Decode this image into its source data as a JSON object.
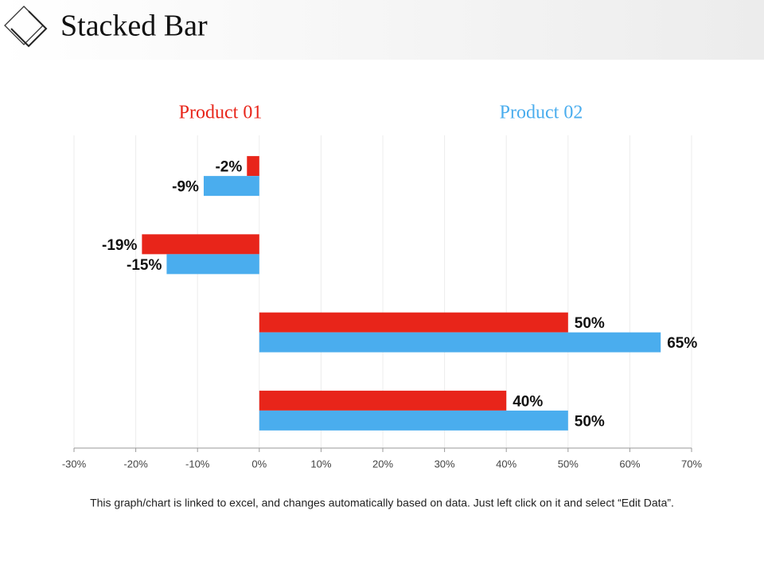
{
  "header": {
    "title": "Stacked Bar"
  },
  "chart_data": {
    "type": "bar",
    "orientation": "horizontal",
    "categories": [
      null,
      null,
      null,
      null
    ],
    "series": [
      {
        "name": "Product 01",
        "color": "#e8251a",
        "values": [
          -2,
          -19,
          50,
          40
        ],
        "value_labels": [
          "-2%",
          "-19%",
          "50%",
          "40%"
        ]
      },
      {
        "name": "Product 02",
        "color": "#4aadee",
        "values": [
          -9,
          -15,
          65,
          50
        ],
        "value_labels": [
          "-9%",
          "-15%",
          "65%",
          "50%"
        ]
      }
    ],
    "xlim": [
      -30,
      70
    ],
    "xticks": [
      {
        "value": -30,
        "label": "-30%"
      },
      {
        "value": -20,
        "label": "-20%"
      },
      {
        "value": -10,
        "label": "-10%"
      },
      {
        "value": 0,
        "label": "0%"
      },
      {
        "value": 10,
        "label": "10%"
      },
      {
        "value": 20,
        "label": "20%"
      },
      {
        "value": 30,
        "label": "30%"
      },
      {
        "value": 40,
        "label": "40%"
      },
      {
        "value": 50,
        "label": "50%"
      },
      {
        "value": 60,
        "label": "60%"
      },
      {
        "value": 70,
        "label": "70%"
      }
    ],
    "grid": true
  },
  "footnote": "This graph/chart is linked to excel, and changes automatically based on data. Just left click on it and select “Edit Data”."
}
